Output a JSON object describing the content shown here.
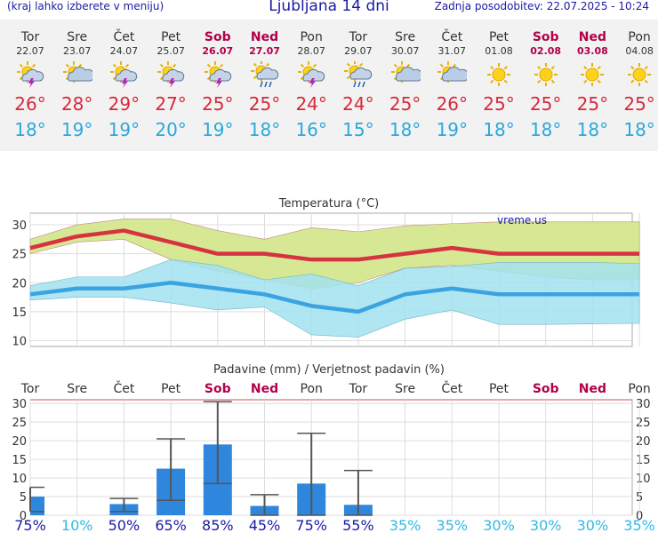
{
  "header": {
    "menu_hint": "(kraj lahko izberete v meniju)",
    "title": "Ljubljana 14 dni",
    "updated": "Zadnja posodobitev: 22.07.2025 - 10:24"
  },
  "days": [
    {
      "name": "Tor",
      "date": "22.07",
      "weekend": false,
      "icon": "sun-cloud-lightning-icon",
      "tmax": "26°",
      "tmin": "18°"
    },
    {
      "name": "Sre",
      "date": "23.07",
      "weekend": false,
      "icon": "sun-cloud-icon",
      "tmax": "28°",
      "tmin": "19°"
    },
    {
      "name": "Čet",
      "date": "24.07",
      "weekend": false,
      "icon": "sun-cloud-lightning-icon",
      "tmax": "29°",
      "tmin": "19°"
    },
    {
      "name": "Pet",
      "date": "25.07",
      "weekend": false,
      "icon": "sun-cloud-lightning-icon",
      "tmax": "27°",
      "tmin": "20°"
    },
    {
      "name": "Sob",
      "date": "26.07",
      "weekend": true,
      "icon": "sun-cloud-lightning-icon",
      "tmax": "25°",
      "tmin": "19°"
    },
    {
      "name": "Ned",
      "date": "27.07",
      "weekend": true,
      "icon": "sun-cloud-rain-icon",
      "tmax": "25°",
      "tmin": "18°"
    },
    {
      "name": "Pon",
      "date": "28.07",
      "weekend": false,
      "icon": "sun-cloud-lightning-icon",
      "tmax": "24°",
      "tmin": "16°"
    },
    {
      "name": "Tor",
      "date": "29.07",
      "weekend": false,
      "icon": "sun-cloud-rain-icon",
      "tmax": "24°",
      "tmin": "15°"
    },
    {
      "name": "Sre",
      "date": "30.07",
      "weekend": false,
      "icon": "sun-cloud-icon",
      "tmax": "25°",
      "tmin": "18°"
    },
    {
      "name": "Čet",
      "date": "31.07",
      "weekend": false,
      "icon": "sun-cloud-icon",
      "tmax": "26°",
      "tmin": "19°"
    },
    {
      "name": "Pet",
      "date": "01.08",
      "weekend": false,
      "icon": "sun-icon",
      "tmax": "25°",
      "tmin": "18°"
    },
    {
      "name": "Sob",
      "date": "02.08",
      "weekend": true,
      "icon": "sun-icon",
      "tmax": "25°",
      "tmin": "18°"
    },
    {
      "name": "Ned",
      "date": "03.08",
      "weekend": true,
      "icon": "sun-icon",
      "tmax": "25°",
      "tmin": "18°"
    },
    {
      "name": "Pon",
      "date": "04.08",
      "weekend": false,
      "icon": "sun-icon",
      "tmax": "25°",
      "tmin": "18°"
    }
  ],
  "chart_data": [
    {
      "type": "line",
      "title": "Temperatura (°C)",
      "watermark": "vreme.us",
      "ylim": [
        9,
        32
      ],
      "yticks": [
        10,
        15,
        20,
        25,
        30
      ],
      "x": [
        0,
        1,
        2,
        3,
        4,
        5,
        6,
        7,
        8,
        9,
        10,
        11,
        12,
        13
      ],
      "grid": true,
      "series": [
        {
          "role": "max",
          "values": [
            26,
            28,
            29,
            27,
            25,
            25,
            24,
            24,
            25,
            26,
            25,
            25,
            25,
            25
          ],
          "color": "#d63340"
        },
        {
          "role": "min",
          "values": [
            18,
            19,
            19,
            20,
            19,
            18,
            16,
            15,
            18,
            19,
            18,
            18,
            18,
            18
          ],
          "color": "#3aa3e0"
        },
        {
          "role": "max-range-high",
          "values": [
            27.5,
            30,
            31,
            31,
            29,
            27.5,
            29.5,
            28.8,
            29.8,
            30.2,
            30.5,
            30.5,
            30.5,
            30.5
          ]
        },
        {
          "role": "max-range-low",
          "values": [
            25,
            27,
            27.5,
            24,
            22,
            20.5,
            19,
            20,
            22.5,
            23,
            22,
            21,
            20.5,
            20.5
          ]
        },
        {
          "role": "min-range-high",
          "values": [
            19.5,
            21,
            21,
            24,
            23,
            20.5,
            21.5,
            19.5,
            22.5,
            22.8,
            23.5,
            23.5,
            23.5,
            23.3
          ]
        },
        {
          "role": "min-range-low",
          "values": [
            17,
            17.5,
            17.5,
            16.5,
            15.3,
            15.8,
            11,
            10.6,
            13.7,
            15.3,
            12.8,
            12.8,
            12.9,
            13
          ]
        }
      ],
      "colors": {
        "max_band": "#d7e894",
        "min_band": "#a2e2f0",
        "overlap": "#8fd68e"
      }
    },
    {
      "type": "bar",
      "title": "Padavine (mm) / Verjetnost padavin (%)",
      "categories": [
        "Tor",
        "Sre",
        "Čet",
        "Pet",
        "Sob",
        "Ned",
        "Pon",
        "Tor",
        "Sre",
        "Čet",
        "Pet",
        "Sob",
        "Ned",
        "Pon"
      ],
      "weekend": [
        false,
        false,
        false,
        false,
        true,
        true,
        false,
        false,
        false,
        false,
        false,
        true,
        true,
        false
      ],
      "ylim": [
        0,
        31
      ],
      "yticks": [
        0,
        5,
        10,
        15,
        20,
        25,
        30
      ],
      "values": [
        5,
        0,
        3,
        12.5,
        19,
        2.5,
        8.5,
        2.8,
        0,
        0,
        0,
        0,
        0,
        0
      ],
      "range_low": [
        1,
        null,
        1,
        4,
        8.5,
        0,
        0,
        0,
        null,
        null,
        null,
        null,
        null,
        null
      ],
      "range_high": [
        7.5,
        null,
        4.5,
        20.5,
        30.5,
        5.5,
        22,
        12,
        null,
        null,
        null,
        null,
        null,
        null
      ],
      "probability": [
        "75%",
        "10%",
        "50%",
        "65%",
        "85%",
        "45%",
        "75%",
        "55%",
        "35%",
        "35%",
        "30%",
        "30%",
        "30%",
        "35%"
      ],
      "probability_values": [
        75,
        10,
        50,
        65,
        85,
        45,
        75,
        55,
        35,
        35,
        30,
        30,
        30,
        35
      ],
      "colors": {
        "bar": "#2f87dd",
        "whisker": "#555555",
        "prob_high": "#1a1aa6",
        "prob_low": "#32b8e8"
      }
    }
  ]
}
